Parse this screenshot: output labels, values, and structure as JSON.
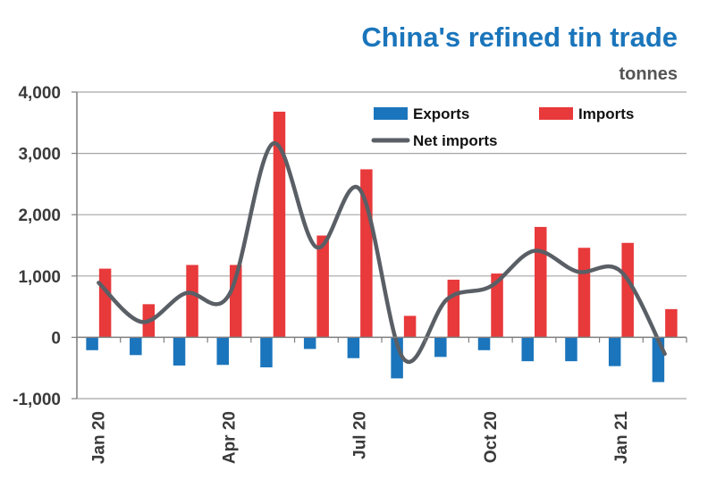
{
  "chart_data": {
    "type": "bar",
    "title": "China's refined tin trade",
    "subtitle": "tonnes",
    "xlabel": "",
    "ylabel": "",
    "ylim": [
      -1000,
      4000
    ],
    "yticks": [
      -1000,
      0,
      1000,
      2000,
      3000,
      4000
    ],
    "ytick_labels": [
      "-1,000",
      "0",
      "1,000",
      "2,000",
      "3,000",
      "4,000"
    ],
    "grid": true,
    "legend_position": "top-right",
    "categories": [
      "Jan 20",
      "Feb 20",
      "Mar 20",
      "Apr 20",
      "May 20",
      "Jun 20",
      "Jul 20",
      "Aug 20",
      "Sep 20",
      "Oct 20",
      "Nov 20",
      "Dec 20",
      "Jan 21",
      "Feb 21"
    ],
    "xtick_labels": [
      {
        "index": 0,
        "label": "Jan 20"
      },
      {
        "index": 3,
        "label": "Apr 20"
      },
      {
        "index": 6,
        "label": "Jul 20"
      },
      {
        "index": 9,
        "label": "Oct 20"
      },
      {
        "index": 12,
        "label": "Jan 21"
      }
    ],
    "series": [
      {
        "name": "Exports",
        "type": "bar",
        "color": "#1b75bc",
        "values": [
          -210,
          -290,
          -460,
          -450,
          -490,
          -190,
          -340,
          -670,
          -320,
          -210,
          -390,
          -390,
          -470,
          -730
        ]
      },
      {
        "name": "Imports",
        "type": "bar",
        "color": "#e8393b",
        "values": [
          1120,
          540,
          1180,
          1180,
          3680,
          1660,
          2740,
          350,
          940,
          1040,
          1800,
          1460,
          1540,
          460
        ]
      },
      {
        "name": "Net imports",
        "type": "line",
        "color": "#5a5f66",
        "values": [
          890,
          250,
          720,
          700,
          3160,
          1470,
          2410,
          -350,
          620,
          830,
          1410,
          1070,
          1070,
          -270
        ]
      }
    ]
  }
}
